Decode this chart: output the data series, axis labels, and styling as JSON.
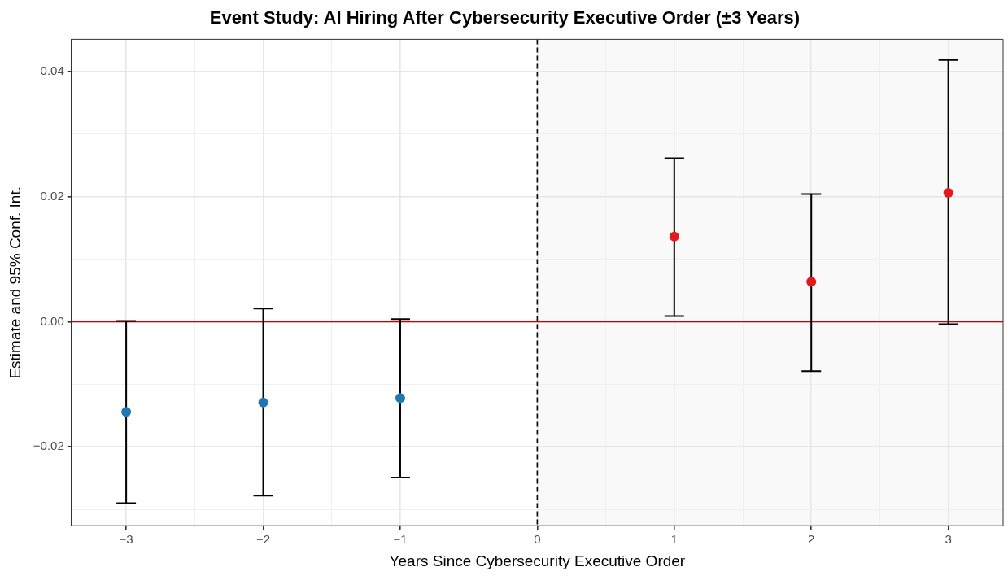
{
  "chart_data": {
    "type": "scatter",
    "title": "Event Study: AI Hiring After Cybersecurity Executive Order (±3 Years)",
    "xlabel": "Years Since Cybersecurity Executive Order",
    "ylabel": "Estimate and 95% Conf. Int.",
    "series": [
      {
        "color": "#1f78b4",
        "x": [
          -3,
          -2,
          -1
        ],
        "values": [
          -0.0144,
          -0.0129,
          -0.0122
        ],
        "errors": [
          [
            -0.029,
            0.0001
          ],
          [
            -0.0278,
            0.0021
          ],
          [
            -0.0249,
            0.0004
          ]
        ]
      },
      {
        "color": "#e31a1c",
        "x": [
          1,
          2,
          3
        ],
        "values": [
          0.0136,
          0.0064,
          0.0206
        ],
        "errors": [
          [
            0.0009,
            0.0261
          ],
          [
            -0.0079,
            0.0204
          ],
          [
            -0.0004,
            0.0418
          ]
        ]
      }
    ],
    "xlim": [
      -3.4,
      3.4
    ],
    "xticks": [
      {
        "value": -3,
        "label": "−3"
      },
      {
        "value": -2.5,
        "label": null
      },
      {
        "value": -2,
        "label": "−2"
      },
      {
        "value": -1.5,
        "label": null
      },
      {
        "value": -1,
        "label": "−1"
      },
      {
        "value": -0.5,
        "label": null
      },
      0,
      {
        "value": 0.5,
        "label": null
      },
      1,
      {
        "value": 1.5,
        "label": null
      },
      2,
      {
        "value": 2.5,
        "label": null
      },
      3
    ],
    "ylim": [
      -0.0326,
      0.0451
    ],
    "yticks": [
      {
        "value": -0.03,
        "label": null
      },
      {
        "value": -0.02,
        "label": "−0.02"
      },
      {
        "value": -0.01,
        "label": null
      },
      {
        "value": 0,
        "label": "0.00"
      },
      {
        "value": 0.01,
        "label": null
      },
      {
        "value": 0.02,
        "label": "0.02"
      },
      {
        "value": 0.03,
        "label": null
      },
      {
        "value": 0.04,
        "label": "0.04"
      }
    ],
    "ref_lines": [
      {
        "axis": "y",
        "value": 0,
        "color": "#cc0000",
        "line_style": "solid"
      },
      {
        "axis": "x",
        "value": 0,
        "color": "#000000",
        "line_style": "dashed"
      }
    ],
    "bands": [
      {
        "axis": "x",
        "from": 0,
        "to": 3.4,
        "color": "#f9f9f9"
      }
    ],
    "grid": true,
    "marker": "circle",
    "legend": false
  }
}
